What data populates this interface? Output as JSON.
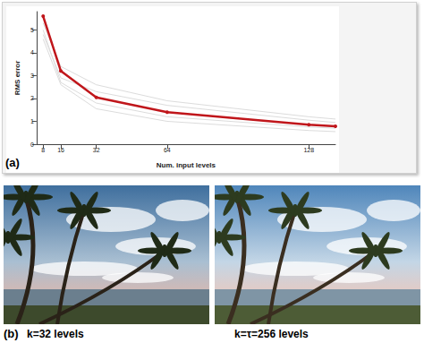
{
  "chart_data": {
    "type": "line",
    "x_label": "Num. input levels",
    "y_label": "RMS error",
    "xlim": [
      5,
      140
    ],
    "xticks": [
      8,
      16,
      32,
      64,
      128
    ],
    "ylim": [
      0,
      5.8
    ],
    "yticks": [
      0,
      1,
      2,
      3,
      4,
      5
    ],
    "grid": false,
    "x": [
      8,
      16,
      32,
      64,
      128,
      140
    ],
    "series": [
      {
        "color": "#dcdcdc",
        "marker": "none",
        "values": [
          5.3,
          3.4,
          2.6,
          1.9,
          1.2,
          1.1
        ]
      },
      {
        "color": "#dcdcdc",
        "marker": "none",
        "values": [
          4.8,
          2.9,
          2.3,
          1.7,
          1.05,
          0.95
        ]
      },
      {
        "color": "#dcdcdc",
        "marker": "none",
        "values": [
          5.0,
          2.7,
          1.8,
          1.2,
          0.75,
          0.7
        ]
      },
      {
        "color": "#dcdcdc",
        "marker": "none",
        "values": [
          4.6,
          2.6,
          1.55,
          1.0,
          0.6,
          0.55
        ]
      },
      {
        "color": "#c0161b",
        "marker": "circle",
        "values": [
          5.6,
          3.2,
          2.05,
          1.4,
          0.85,
          0.78
        ]
      }
    ]
  },
  "figure": {
    "panel_labels": [
      "(a)",
      "(b)"
    ],
    "captions": [
      "k=32 levels",
      "k=τ=256 levels"
    ]
  }
}
